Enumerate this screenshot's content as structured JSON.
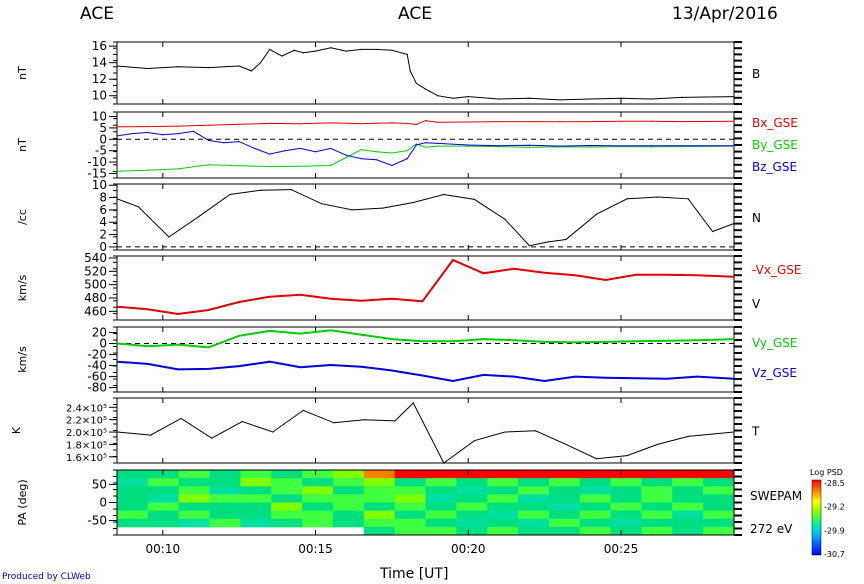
{
  "header": {
    "left": "ACE",
    "center": "ACE",
    "date": "13/Apr/2016"
  },
  "footer": {
    "credit": "Produced by CLWeb",
    "xlabel": "Time [UT]"
  },
  "colorbar": {
    "title": "Log PSD",
    "ticks": [
      "-28.5",
      "-29.2",
      "-29.9",
      "-30.7"
    ]
  },
  "chart_data": {
    "type": "line",
    "x_ticks": [
      "00:10",
      "00:15",
      "00:20",
      "00:25"
    ],
    "x_range_minutes": [
      8.5,
      28.7
    ],
    "panels": [
      {
        "id": "B",
        "ylabel": "nT",
        "yticks": [
          "16",
          "14",
          "12",
          "10"
        ],
        "ylim": [
          9,
          16.5
        ],
        "series": [
          {
            "name": "B",
            "color": "#000000",
            "t": [
              8.5,
              9.5,
              10.5,
              11.5,
              12.5,
              12.9,
              13.2,
              13.5,
              13.9,
              14.3,
              14.6,
              15.0,
              15.5,
              16.0,
              16.5,
              17.0,
              17.5,
              18.0,
              18.1,
              18.3,
              18.6,
              19.0,
              19.5,
              20.0,
              21.0,
              22.0,
              23.0,
              24.0,
              25.0,
              26.0,
              27.0,
              28.7
            ],
            "v": [
              13.6,
              13.3,
              13.5,
              13.4,
              13.6,
              13.0,
              14.0,
              15.6,
              14.8,
              15.5,
              15.2,
              15.4,
              15.8,
              15.4,
              15.6,
              15.6,
              15.5,
              15.0,
              13.0,
              11.5,
              10.8,
              10.0,
              9.7,
              9.9,
              9.6,
              9.7,
              9.5,
              9.6,
              9.7,
              9.6,
              9.8,
              9.9
            ]
          }
        ]
      },
      {
        "id": "Bgse",
        "ylabel": "nT",
        "yticks": [
          "10",
          "5",
          "0",
          "-5",
          "-10",
          "-15"
        ],
        "ylim": [
          -17,
          12
        ],
        "series": [
          {
            "name": "Bx_GSE",
            "color": "#e00000",
            "t": [
              8.5,
              9.5,
              10.5,
              11.5,
              12.5,
              13.5,
              14.5,
              15.5,
              16.5,
              17.5,
              18.0,
              18.3,
              18.6,
              19.0,
              20.0,
              21.0,
              22.0,
              23.0,
              24.0,
              25.0,
              26.0,
              27.0,
              28.7
            ],
            "v": [
              5.5,
              5.6,
              5.8,
              6.2,
              6.6,
              7.0,
              6.8,
              7.2,
              6.9,
              7.2,
              7.0,
              6.5,
              8.2,
              7.5,
              7.6,
              7.8,
              7.8,
              7.7,
              7.8,
              7.9,
              7.9,
              7.8,
              7.9
            ]
          },
          {
            "name": "By_GSE",
            "color": "#00cc00",
            "t": [
              8.5,
              9.5,
              10.5,
              11.5,
              12.5,
              13.5,
              14.5,
              15.5,
              16.0,
              16.5,
              17.0,
              17.5,
              18.0,
              18.3,
              18.6,
              19.0,
              20.0,
              21.0,
              22.0,
              23.0,
              24.0,
              25.0,
              26.0,
              27.0,
              28.7
            ],
            "v": [
              -14.0,
              -13.6,
              -13.0,
              -11.2,
              -11.6,
              -12.0,
              -11.8,
              -11.5,
              -8.0,
              -4.5,
              -5.5,
              -6.0,
              -5.0,
              -2.0,
              -3.5,
              -3.0,
              -3.0,
              -3.2,
              -3.5,
              -3.3,
              -3.4,
              -3.2,
              -3.3,
              -3.2,
              -3.0
            ]
          },
          {
            "name": "Bz_GSE",
            "color": "#0000dd",
            "t": [
              8.5,
              9.0,
              9.5,
              10.0,
              10.5,
              11.0,
              11.5,
              12.0,
              12.5,
              13.0,
              13.5,
              14.0,
              14.5,
              15.0,
              15.5,
              16.0,
              16.5,
              17.0,
              17.5,
              18.0,
              18.3,
              18.6,
              19.0,
              20.0,
              21.0,
              22.0,
              23.0,
              24.0,
              25.0,
              26.0,
              27.0,
              28.7
            ],
            "v": [
              1.5,
              2.5,
              3.0,
              2.0,
              2.5,
              3.5,
              -0.5,
              -1.5,
              -1.0,
              -4.0,
              -6.5,
              -5.0,
              -4.0,
              -5.5,
              -4.0,
              -7.0,
              -8.5,
              -9.0,
              -11.5,
              -8.5,
              -2.5,
              -1.5,
              -1.8,
              -2.5,
              -2.8,
              -2.6,
              -3.0,
              -2.7,
              -2.9,
              -2.8,
              -2.8,
              -2.8
            ]
          }
        ]
      },
      {
        "id": "N",
        "ylabel": "/cc",
        "yticks": [
          "10",
          "8",
          "6",
          "4",
          "2",
          "0"
        ],
        "ylim": [
          -0.5,
          10.2
        ],
        "series": [
          {
            "name": "N",
            "color": "#000000",
            "t": [
              8.5,
              9.2,
              10.2,
              11.2,
              12.2,
              13.2,
              14.2,
              15.2,
              16.2,
              17.2,
              18.2,
              19.2,
              20.2,
              21.2,
              22.0,
              22.6,
              23.2,
              24.2,
              25.2,
              26.2,
              27.2,
              28.0,
              28.7
            ],
            "v": [
              7.8,
              6.5,
              1.6,
              5.0,
              8.5,
              9.2,
              9.3,
              7.0,
              6.0,
              6.3,
              7.2,
              8.5,
              7.7,
              4.5,
              0.2,
              0.8,
              1.2,
              5.3,
              7.8,
              8.1,
              7.8,
              2.5,
              3.8
            ]
          }
        ]
      },
      {
        "id": "Vx",
        "ylabel": "km/s",
        "yticks": [
          "540",
          "520",
          "500",
          "480",
          "460"
        ],
        "ylim": [
          447,
          543
        ],
        "series": [
          {
            "name": "-Vx_GSE",
            "color": "#e00000",
            "t": [
              8.5,
              9.5,
              10.5,
              11.5,
              12.5,
              13.5,
              14.5,
              15.5,
              16.5,
              17.5,
              18.5,
              19.5,
              20.5,
              21.5,
              22.5,
              23.5,
              24.5,
              25.5,
              26.5,
              27.5,
              28.7
            ],
            "v": [
              467,
              463,
              456,
              462,
              474,
              482,
              485,
              479,
              476,
              479,
              475,
              537,
              517,
              524,
              518,
              514,
              507,
              515,
              515,
              514,
              512
            ]
          }
        ]
      },
      {
        "id": "Vyz",
        "ylabel": "km/s",
        "yticks": [
          "20",
          "0",
          "-20",
          "-40",
          "-60",
          "-80"
        ],
        "ylim": [
          -88,
          30
        ],
        "series": [
          {
            "name": "Vy_GSE",
            "color": "#00cc00",
            "t": [
              8.5,
              9.5,
              10.5,
              11.5,
              12.5,
              13.5,
              14.5,
              15.5,
              16.5,
              17.5,
              18.5,
              19.5,
              20.5,
              21.5,
              22.5,
              23.5,
              24.5,
              25.5,
              26.5,
              27.5,
              28.7
            ],
            "v": [
              0,
              -5,
              -2,
              -7,
              14,
              23,
              18,
              24,
              16,
              8,
              4,
              4,
              8,
              6,
              3,
              2,
              3,
              4,
              5,
              6,
              8
            ]
          },
          {
            "name": "Vz_GSE",
            "color": "#0000dd",
            "t": [
              8.5,
              9.5,
              10.5,
              11.5,
              12.5,
              13.5,
              14.5,
              15.5,
              16.5,
              17.5,
              18.5,
              19.5,
              20.5,
              21.5,
              22.5,
              23.5,
              24.5,
              25.5,
              26.5,
              27.5,
              28.7
            ],
            "v": [
              -33,
              -37,
              -47,
              -46,
              -41,
              -33,
              -43,
              -39,
              -42,
              -49,
              -58,
              -68,
              -57,
              -60,
              -68,
              -60,
              -62,
              -63,
              -64,
              -60,
              -64
            ]
          }
        ]
      },
      {
        "id": "T",
        "ylabel": "K",
        "yticks": [
          "2.4×10⁵",
          "2.2×10⁵",
          "2.0×10⁵",
          "1.8×10⁵",
          "1.6×10⁵"
        ],
        "ylim": [
          150000,
          255000
        ],
        "series": [
          {
            "name": "T",
            "color": "#000000",
            "t": [
              8.5,
              9.6,
              10.6,
              11.6,
              12.6,
              13.6,
              14.6,
              15.6,
              16.6,
              17.6,
              18.2,
              19.2,
              20.2,
              21.2,
              22.2,
              23.2,
              24.2,
              25.2,
              26.2,
              27.2,
              28.7
            ],
            "v": [
              200000,
              195000,
              222000,
              190000,
              217000,
              200000,
              235000,
              215000,
              220000,
              218000,
              247000,
              150000,
              186000,
              200000,
              202000,
              180000,
              157000,
              162000,
              180000,
              193000,
              200000
            ]
          }
        ]
      },
      {
        "id": "PA",
        "ylabel": "PA (deg)",
        "yticks": [
          "50",
          "0",
          "-50"
        ],
        "ylim": [
          -90,
          90
        ],
        "right_labels": [
          "SWEPAM",
          "272 eV"
        ]
      }
    ]
  }
}
